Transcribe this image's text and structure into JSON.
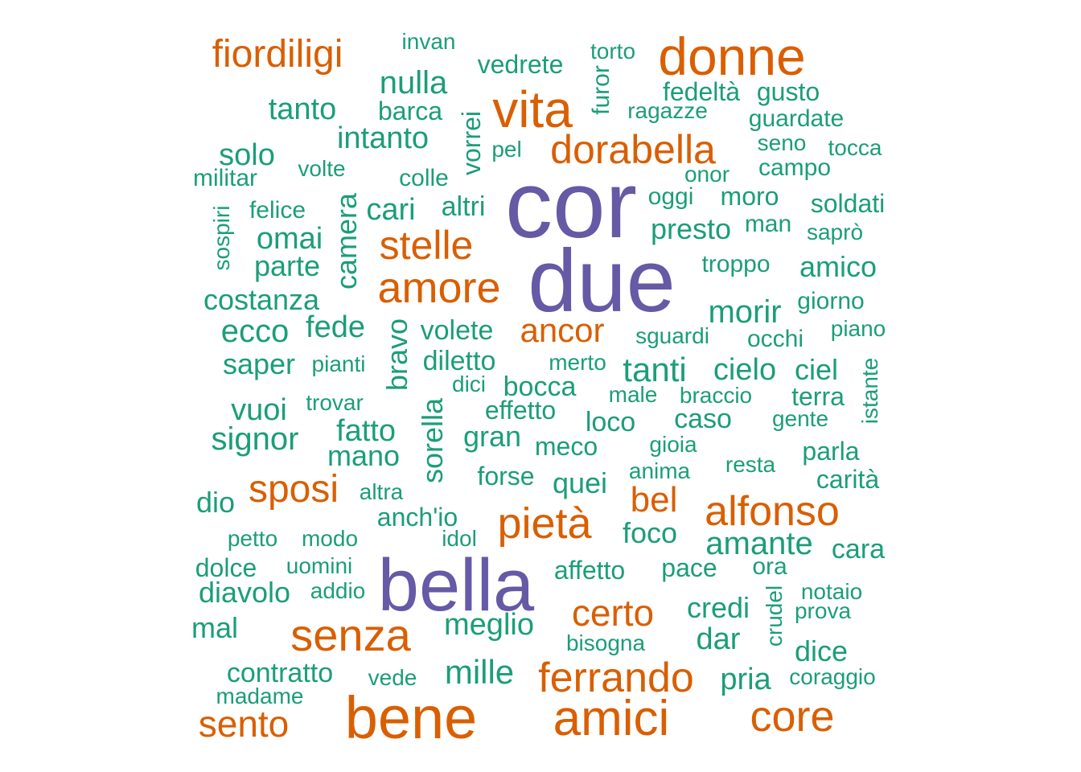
{
  "colors": {
    "large": "#6659a5",
    "medium": "#d95f02",
    "small": "#1b9e77"
  },
  "words": [
    {
      "text": "cor",
      "tier": "large"
    },
    {
      "text": "due",
      "tier": "large"
    },
    {
      "text": "bella",
      "tier": "large"
    },
    {
      "text": "donne",
      "tier": "medium"
    },
    {
      "text": "vita",
      "tier": "medium"
    },
    {
      "text": "dorabella",
      "tier": "medium"
    },
    {
      "text": "fiordiligi",
      "tier": "medium"
    },
    {
      "text": "stelle",
      "tier": "medium"
    },
    {
      "text": "amore",
      "tier": "medium"
    },
    {
      "text": "ancor",
      "tier": "medium"
    },
    {
      "text": "pietà",
      "tier": "medium"
    },
    {
      "text": "alfonso",
      "tier": "medium"
    },
    {
      "text": "sposi",
      "tier": "medium"
    },
    {
      "text": "bel",
      "tier": "medium"
    },
    {
      "text": "senza",
      "tier": "medium"
    },
    {
      "text": "certo",
      "tier": "medium"
    },
    {
      "text": "ferrando",
      "tier": "medium"
    },
    {
      "text": "bene",
      "tier": "medium"
    },
    {
      "text": "amici",
      "tier": "medium"
    },
    {
      "text": "core",
      "tier": "medium"
    },
    {
      "text": "sento",
      "tier": "medium"
    },
    {
      "text": "invan",
      "tier": "small"
    },
    {
      "text": "torto",
      "tier": "small"
    },
    {
      "text": "vedrete",
      "tier": "small"
    },
    {
      "text": "nulla",
      "tier": "small"
    },
    {
      "text": "furor",
      "tier": "small"
    },
    {
      "text": "fedeltà",
      "tier": "small"
    },
    {
      "text": "gusto",
      "tier": "small"
    },
    {
      "text": "tanto",
      "tier": "small"
    },
    {
      "text": "barca",
      "tier": "small"
    },
    {
      "text": "ragazze",
      "tier": "small"
    },
    {
      "text": "guardate",
      "tier": "small"
    },
    {
      "text": "intanto",
      "tier": "small"
    },
    {
      "text": "vorrei",
      "tier": "small"
    },
    {
      "text": "seno",
      "tier": "small"
    },
    {
      "text": "tocca",
      "tier": "small"
    },
    {
      "text": "solo",
      "tier": "small"
    },
    {
      "text": "pel",
      "tier": "small"
    },
    {
      "text": "campo",
      "tier": "small"
    },
    {
      "text": "militar",
      "tier": "small"
    },
    {
      "text": "volte",
      "tier": "small"
    },
    {
      "text": "colle",
      "tier": "small"
    },
    {
      "text": "onor",
      "tier": "small"
    },
    {
      "text": "oggi",
      "tier": "small"
    },
    {
      "text": "moro",
      "tier": "small"
    },
    {
      "text": "soldati",
      "tier": "small"
    },
    {
      "text": "sospiri",
      "tier": "small"
    },
    {
      "text": "felice",
      "tier": "small"
    },
    {
      "text": "cari",
      "tier": "small"
    },
    {
      "text": "altri",
      "tier": "small"
    },
    {
      "text": "camera",
      "tier": "small"
    },
    {
      "text": "man",
      "tier": "small"
    },
    {
      "text": "presto",
      "tier": "small"
    },
    {
      "text": "saprò",
      "tier": "small"
    },
    {
      "text": "omai",
      "tier": "small"
    },
    {
      "text": "parte",
      "tier": "small"
    },
    {
      "text": "troppo",
      "tier": "small"
    },
    {
      "text": "amico",
      "tier": "small"
    },
    {
      "text": "costanza",
      "tier": "small"
    },
    {
      "text": "morir",
      "tier": "small"
    },
    {
      "text": "giorno",
      "tier": "small"
    },
    {
      "text": "ecco",
      "tier": "small"
    },
    {
      "text": "fede",
      "tier": "small"
    },
    {
      "text": "bravo",
      "tier": "small"
    },
    {
      "text": "volete",
      "tier": "small"
    },
    {
      "text": "sguardi",
      "tier": "small"
    },
    {
      "text": "occhi",
      "tier": "small"
    },
    {
      "text": "piano",
      "tier": "small"
    },
    {
      "text": "saper",
      "tier": "small"
    },
    {
      "text": "pianti",
      "tier": "small"
    },
    {
      "text": "diletto",
      "tier": "small"
    },
    {
      "text": "merto",
      "tier": "small"
    },
    {
      "text": "tanti",
      "tier": "small"
    },
    {
      "text": "cielo",
      "tier": "small"
    },
    {
      "text": "ciel",
      "tier": "small"
    },
    {
      "text": "istante",
      "tier": "small"
    },
    {
      "text": "dici",
      "tier": "small"
    },
    {
      "text": "bocca",
      "tier": "small"
    },
    {
      "text": "male",
      "tier": "small"
    },
    {
      "text": "braccio",
      "tier": "small"
    },
    {
      "text": "terra",
      "tier": "small"
    },
    {
      "text": "vuoi",
      "tier": "small"
    },
    {
      "text": "trovar",
      "tier": "small"
    },
    {
      "text": "effetto",
      "tier": "small"
    },
    {
      "text": "loco",
      "tier": "small"
    },
    {
      "text": "caso",
      "tier": "small"
    },
    {
      "text": "gente",
      "tier": "small"
    },
    {
      "text": "signor",
      "tier": "small"
    },
    {
      "text": "fatto",
      "tier": "small"
    },
    {
      "text": "sorella",
      "tier": "small"
    },
    {
      "text": "gran",
      "tier": "small"
    },
    {
      "text": "meco",
      "tier": "small"
    },
    {
      "text": "gioia",
      "tier": "small"
    },
    {
      "text": "parla",
      "tier": "small"
    },
    {
      "text": "mano",
      "tier": "small"
    },
    {
      "text": "forse",
      "tier": "small"
    },
    {
      "text": "anima",
      "tier": "small"
    },
    {
      "text": "resta",
      "tier": "small"
    },
    {
      "text": "carità",
      "tier": "small"
    },
    {
      "text": "dio",
      "tier": "small"
    },
    {
      "text": "altra",
      "tier": "small"
    },
    {
      "text": "quei",
      "tier": "small"
    },
    {
      "text": "anch'io",
      "tier": "small"
    },
    {
      "text": "foco",
      "tier": "small"
    },
    {
      "text": "petto",
      "tier": "small"
    },
    {
      "text": "modo",
      "tier": "small"
    },
    {
      "text": "idol",
      "tier": "small"
    },
    {
      "text": "amante",
      "tier": "small"
    },
    {
      "text": "cara",
      "tier": "small"
    },
    {
      "text": "dolce",
      "tier": "small"
    },
    {
      "text": "uomini",
      "tier": "small"
    },
    {
      "text": "affetto",
      "tier": "small"
    },
    {
      "text": "pace",
      "tier": "small"
    },
    {
      "text": "ora",
      "tier": "small"
    },
    {
      "text": "diavolo",
      "tier": "small"
    },
    {
      "text": "addio",
      "tier": "small"
    },
    {
      "text": "notaio",
      "tier": "small"
    },
    {
      "text": "crudel",
      "tier": "small"
    },
    {
      "text": "credi",
      "tier": "small"
    },
    {
      "text": "prova",
      "tier": "small"
    },
    {
      "text": "mal",
      "tier": "small"
    },
    {
      "text": "meglio",
      "tier": "small"
    },
    {
      "text": "bisogna",
      "tier": "small"
    },
    {
      "text": "dar",
      "tier": "small"
    },
    {
      "text": "dice",
      "tier": "small"
    },
    {
      "text": "contratto",
      "tier": "small"
    },
    {
      "text": "vede",
      "tier": "small"
    },
    {
      "text": "mille",
      "tier": "small"
    },
    {
      "text": "pria",
      "tier": "small"
    },
    {
      "text": "coraggio",
      "tier": "small"
    },
    {
      "text": "madame",
      "tier": "small"
    }
  ]
}
